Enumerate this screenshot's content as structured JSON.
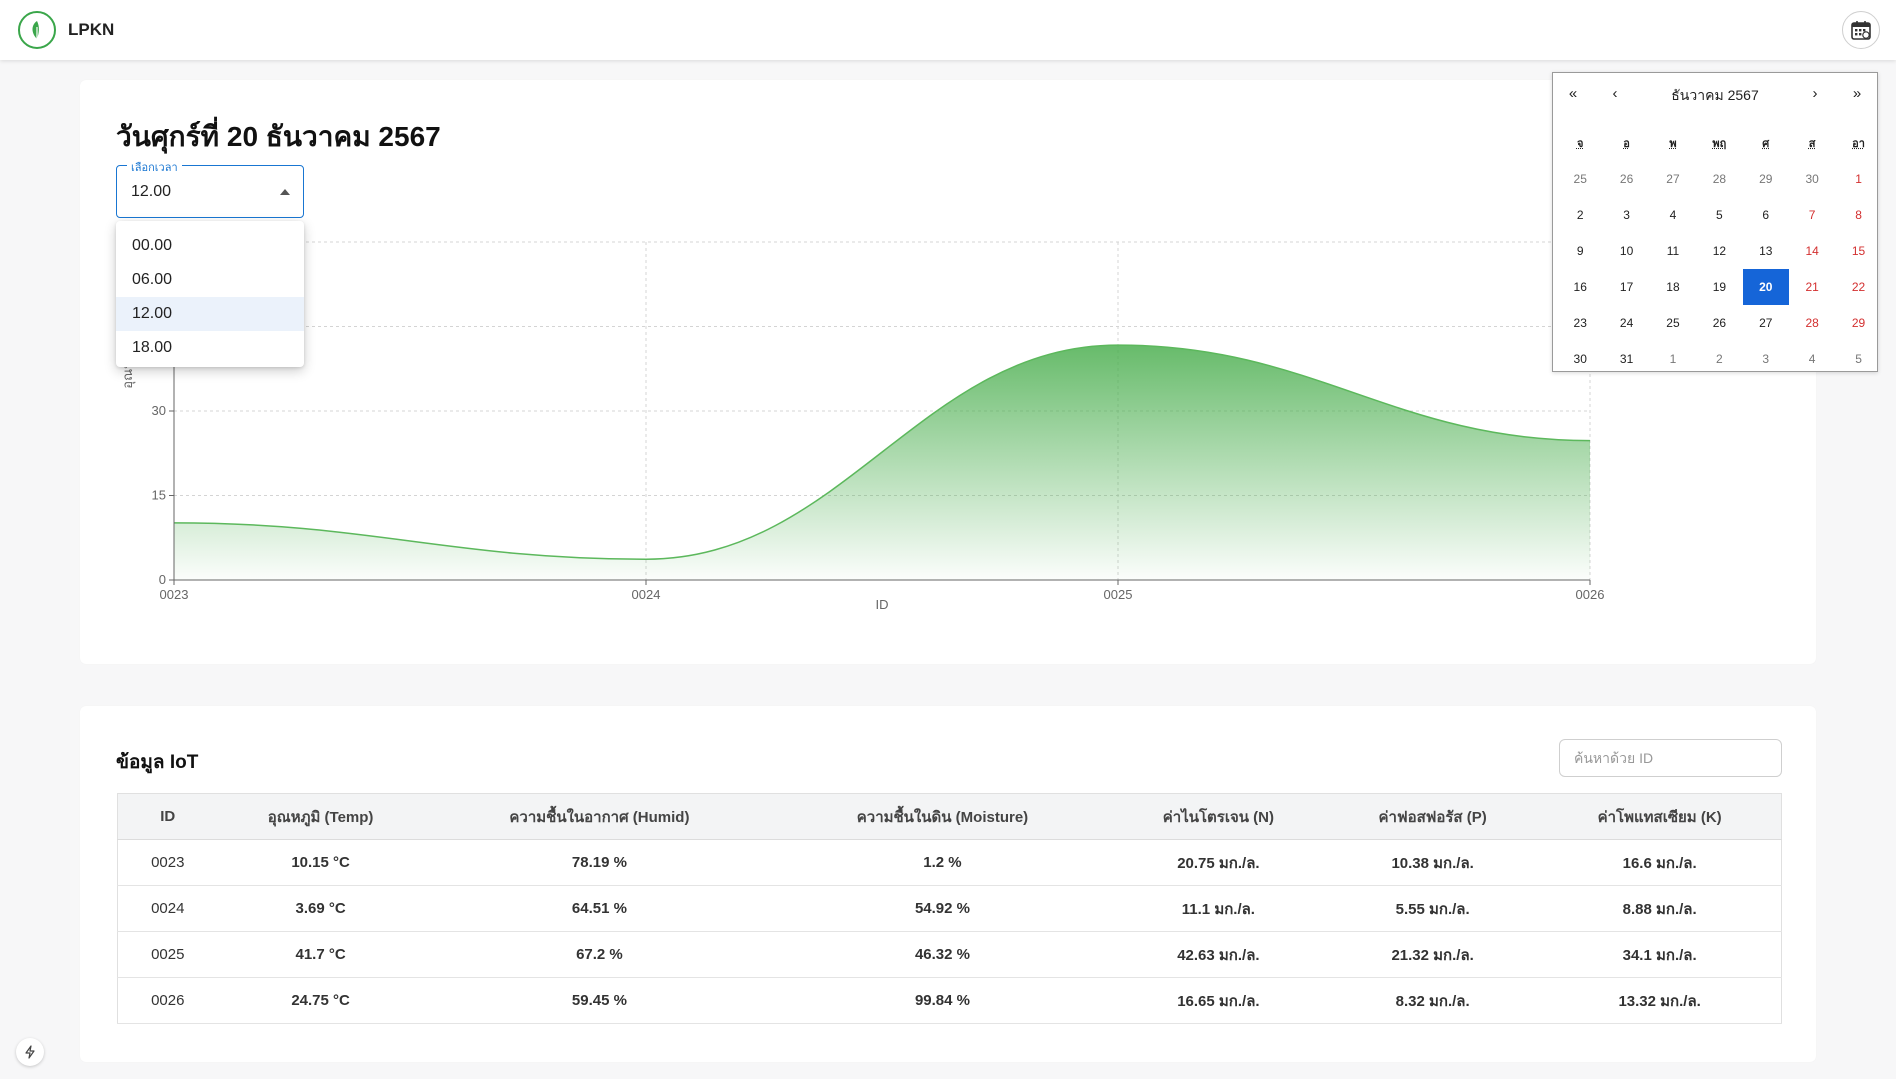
{
  "app": {
    "brand": "LPKN"
  },
  "header": {
    "date_title": "วันศุกร์ที่ 20 ธันวาคม 2567"
  },
  "time_select": {
    "label": "เลือกเวลา",
    "value": "12.00",
    "options": [
      "00.00",
      "06.00",
      "12.00",
      "18.00"
    ],
    "selected_index": 2
  },
  "calendar": {
    "month_title": "ธันวาคม 2567",
    "nav": {
      "prev_year": "«",
      "prev_month": "‹",
      "next_month": "›",
      "next_year": "»"
    },
    "weekdays": [
      "จ",
      "อ",
      "พ",
      "พฤ",
      "ศ",
      "ส",
      "อา"
    ],
    "weeks": [
      [
        "25",
        "26",
        "27",
        "28",
        "29",
        "30",
        "1"
      ],
      [
        "2",
        "3",
        "4",
        "5",
        "6",
        "7",
        "8"
      ],
      [
        "9",
        "10",
        "11",
        "12",
        "13",
        "14",
        "15"
      ],
      [
        "16",
        "17",
        "18",
        "19",
        "20",
        "21",
        "22"
      ],
      [
        "23",
        "24",
        "25",
        "26",
        "27",
        "28",
        "29"
      ],
      [
        "30",
        "31",
        "1",
        "2",
        "3",
        "4",
        "5"
      ]
    ],
    "selected_day": "20"
  },
  "chart_data": {
    "type": "area",
    "x": [
      "0023",
      "0024",
      "0025",
      "0026"
    ],
    "series": [
      {
        "values": [
          10.15,
          3.69,
          41.7,
          24.75
        ]
      }
    ],
    "xlabel": "ID",
    "ylabel": "อุณหภูมิ",
    "yticks": [
      0,
      15,
      30
    ],
    "ylim": [
      0,
      60
    ],
    "grid": true,
    "color": "#4caf50"
  },
  "table": {
    "title": "ข้อมูล IoT",
    "search_placeholder": "ค้นหาด้วย ID",
    "columns": [
      "ID",
      "อุณหภูมิ (Temp)",
      "ความชื้นในอากาศ (Humid)",
      "ความชื้นในดิน (Moisture)",
      "ค่าไนโตรเจน (N)",
      "ค่าฟอสฟอรัส (P)",
      "ค่าโพแทสเซียม (K)"
    ],
    "rows": [
      {
        "id": "0023",
        "temp": "10.15 °C",
        "humid": "78.19 %",
        "moisture": "1.2 %",
        "n": "20.75 มก./ล.",
        "p": "10.38 มก./ล.",
        "k": "16.6 มก./ล.",
        "status": [
          "r",
          "g",
          "r",
          "r",
          "g",
          "r"
        ]
      },
      {
        "id": "0024",
        "temp": "3.69 °C",
        "humid": "64.51 %",
        "moisture": "54.92 %",
        "n": "11.1 มก./ล.",
        "p": "5.55 มก./ล.",
        "k": "8.88 มก./ล.",
        "status": [
          "r",
          "g",
          "g",
          "r",
          "g",
          "r"
        ]
      },
      {
        "id": "0025",
        "temp": "41.7 °C",
        "humid": "67.2 %",
        "moisture": "46.32 %",
        "n": "42.63 มก./ล.",
        "p": "21.32 มก./ล.",
        "k": "34.1 มก./ล.",
        "status": [
          "r",
          "g",
          "g",
          "r",
          "r",
          "r"
        ]
      },
      {
        "id": "0026",
        "temp": "24.75 °C",
        "humid": "59.45 %",
        "moisture": "99.84 %",
        "n": "16.65 มก./ล.",
        "p": "8.32 มก./ล.",
        "k": "13.32 มก./ล.",
        "status": [
          "g",
          "r",
          "r",
          "r",
          "g",
          "r"
        ]
      }
    ]
  },
  "colors": {
    "accent": "#1976d2",
    "good": "#1fb34a",
    "bad": "#e0242f",
    "brand": "#3aa64a"
  },
  "icons": {
    "logo": "leaf-icon",
    "calendar_button": "calendar-icon",
    "floating": "bolt-icon"
  }
}
